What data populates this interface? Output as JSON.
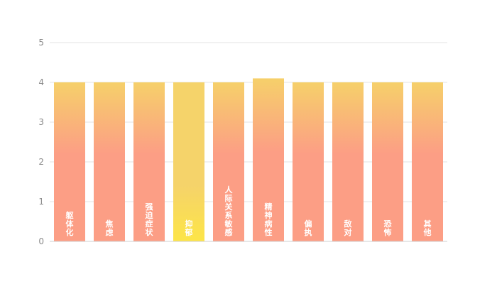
{
  "chart_data": {
    "type": "bar",
    "categories": [
      "躯体化",
      "焦虑",
      "强迫症状",
      "抑郁",
      "人际关系敏感",
      "精神病性",
      "偏执",
      "敌对",
      "恐怖",
      "其他"
    ],
    "values": [
      4.0,
      4.0,
      4.0,
      4.0,
      4.0,
      4.1,
      4.0,
      4.0,
      4.0,
      4.0
    ],
    "highlight_index": 3,
    "ylim": [
      0,
      5
    ],
    "yticks": [
      "0",
      "1",
      "2",
      "3",
      "4",
      "5"
    ],
    "grid": true,
    "colors": {
      "bar_top": "#f6d06a",
      "bar_bottom": "#fc9e85",
      "highlight_top": "#f5d36a",
      "highlight_bottom": "#fde547"
    }
  }
}
